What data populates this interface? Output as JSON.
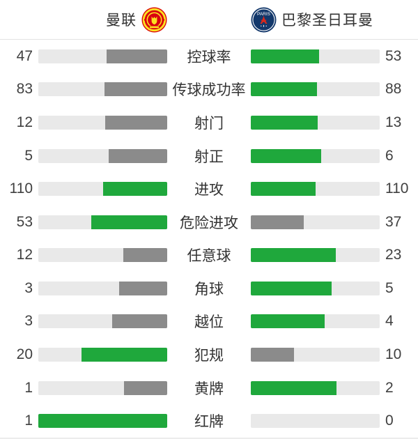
{
  "header": {
    "home": {
      "name": "曼联",
      "logo_icon": "manchester-united-crest"
    },
    "away": {
      "name": "巴黎圣日耳曼",
      "logo_icon": "paris-saint-germain-crest",
      "logo_text": "PARIS"
    }
  },
  "chart_data": {
    "type": "bar",
    "layout": "paired-horizontal-comparison",
    "categories": [
      "控球率",
      "传球成功率",
      "射门",
      "射正",
      "进攻",
      "危险进攻",
      "任意球",
      "角球",
      "越位",
      "犯规",
      "黄牌",
      "红牌"
    ],
    "series": [
      {
        "name": "曼联",
        "values": [
          47,
          83,
          12,
          5,
          110,
          53,
          12,
          3,
          3,
          20,
          1,
          1
        ]
      },
      {
        "name": "巴黎圣日耳曼",
        "values": [
          53,
          88,
          13,
          6,
          110,
          37,
          23,
          5,
          4,
          10,
          2,
          0
        ]
      }
    ],
    "bar_rule": "fill width = value / (home + away); side with higher or equal value is green, lower side is gray",
    "colors": {
      "leading_fill": "#1FA83C",
      "trailing_fill": "#8B8B8B",
      "track": "#E9E9E9",
      "text": "#3F3F3F",
      "divider": "#E3E3E3"
    }
  }
}
